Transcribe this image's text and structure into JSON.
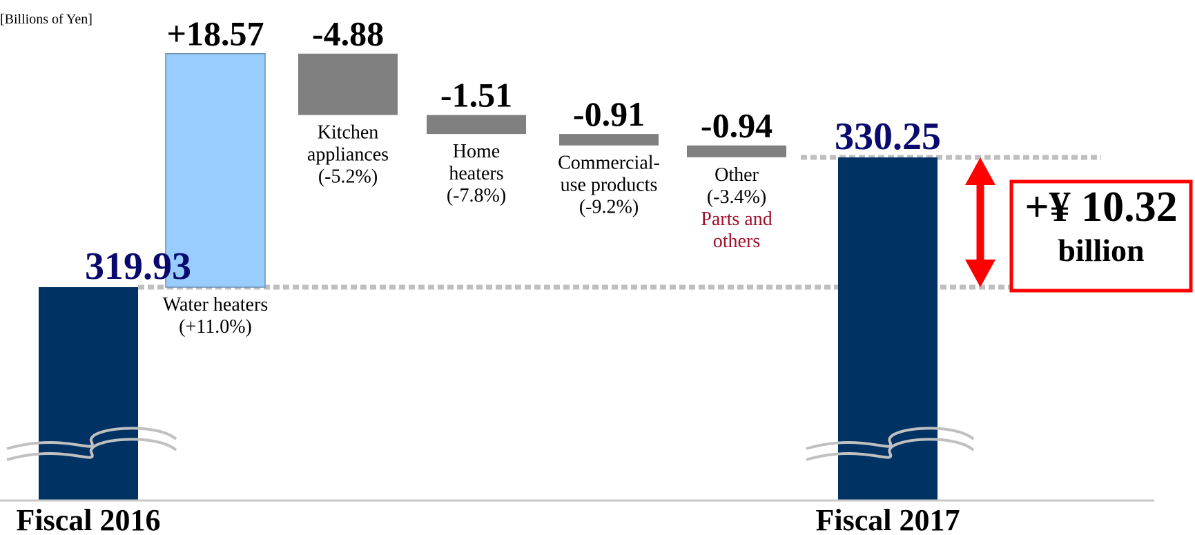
{
  "chart_data": {
    "type": "waterfall",
    "unit_label": "[Billions of Yen]",
    "start": {
      "label": "Fiscal 2016",
      "value": 319.93,
      "display": "319.93"
    },
    "end": {
      "label": "Fiscal 2017",
      "value": 330.25,
      "display": "330.25"
    },
    "steps": [
      {
        "lines": [
          "Water heaters",
          "(+11.0%)"
        ],
        "value": 18.57,
        "display": "+18.57"
      },
      {
        "lines": [
          "Kitchen",
          "appliances",
          "(-5.2%)"
        ],
        "value": -4.88,
        "display": "-4.88"
      },
      {
        "lines": [
          "Home",
          "heaters",
          "(-7.8%)"
        ],
        "value": -1.51,
        "display": "-1.51"
      },
      {
        "lines": [
          "Commercial-",
          "use products",
          "(-9.2%)"
        ],
        "value": -0.91,
        "display": "-0.91"
      },
      {
        "lines": [
          "Other",
          "(-3.4%)"
        ],
        "extra_lines": [
          "Parts and",
          "others"
        ],
        "value": -0.94,
        "display": "-0.94"
      }
    ],
    "total_change": {
      "line1": "+¥ 10.32",
      "line2": "billion"
    },
    "axis_break": true
  },
  "colors": {
    "base_bar": "#003263",
    "increase_bar": "#99ccff",
    "decrease_bar": "#808080",
    "start_end_text": "#0a0a6e",
    "accent_text": "#a0102a",
    "callout_border": "#ff0000",
    "arrow": "#ff0000",
    "guide": "#bfbfbf",
    "break_line": "#c0c0c0",
    "baseline": "#c8c8c8"
  }
}
